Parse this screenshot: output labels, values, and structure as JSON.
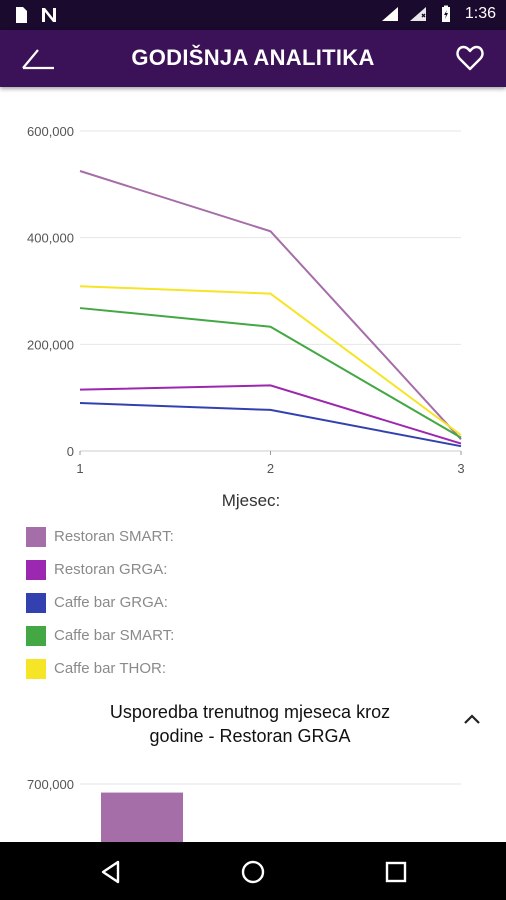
{
  "status_bar": {
    "time": "1:36",
    "icons": [
      "file-icon",
      "n-notification-icon",
      "wifi-icon",
      "signal-icon",
      "battery-icon"
    ]
  },
  "app_bar": {
    "title": "GODIŠNJA ANALITIKA",
    "icons": [
      "back-arrow-icon",
      "heart-icon"
    ]
  },
  "chart_data": [
    {
      "type": "line",
      "x": [
        1,
        2,
        3
      ],
      "xlabel": "Mjesec:",
      "ylabel": "",
      "ylim": [
        0,
        600000
      ],
      "yticks": [
        "600,000",
        "400,000",
        "200,000",
        "0"
      ],
      "xticks": [
        "1",
        "2",
        "3"
      ],
      "grid": true,
      "series": [
        {
          "name": "Restoran SMART:",
          "color": "#a66ea8",
          "values": [
            525000,
            412000,
            22000
          ]
        },
        {
          "name": "Restoran GRGA:",
          "color": "#9c27b0",
          "values": [
            115000,
            123000,
            14000
          ]
        },
        {
          "name": "Caffe bar GRGA:",
          "color": "#3341b0",
          "values": [
            90000,
            77000,
            9000
          ]
        },
        {
          "name": "Caffe bar SMART:",
          "color": "#43a843",
          "values": [
            268000,
            233000,
            25000
          ]
        },
        {
          "name": "Caffe bar THOR:",
          "color": "#f5e526",
          "values": [
            309000,
            295000,
            30000
          ]
        }
      ]
    },
    {
      "type": "bar",
      "title": "Usporedba trenutnog  mjeseca kroz godine - Restoran GRGA",
      "yticks": [
        "700,000"
      ],
      "values": [
        680000
      ],
      "color": "#a66ea8"
    }
  ],
  "section": {
    "title_line1": "Usporedba trenutnog  mjeseca kroz",
    "title_line2": "godine - Restoran GRGA",
    "collapse_icon": "chevron-up-icon"
  },
  "nav_bar": {
    "icons": [
      "back-triangle-icon",
      "home-circle-icon",
      "recents-square-icon"
    ]
  }
}
